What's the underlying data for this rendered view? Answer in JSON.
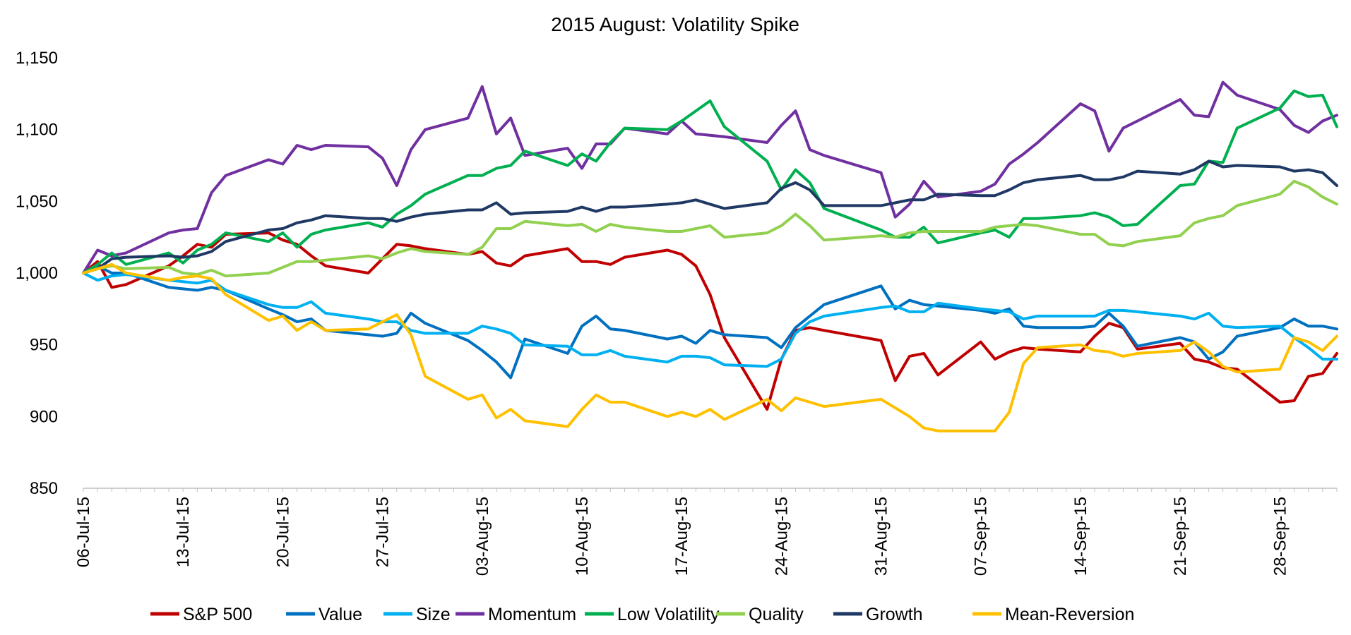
{
  "chart_data": {
    "type": "line",
    "title": "2015 August: Volatility Spike",
    "xlabel": "",
    "ylabel": "",
    "ylim": [
      850,
      1150
    ],
    "yticks": [
      "1,150",
      "1,100",
      "1,050",
      "1,000",
      "950",
      "900",
      "850"
    ],
    "ytick_values": [
      1150,
      1100,
      1050,
      1000,
      950,
      900,
      850
    ],
    "xticks": [
      "06-Jul-15",
      "13-Jul-15",
      "20-Jul-15",
      "27-Jul-15",
      "03-Aug-15",
      "10-Aug-15",
      "17-Aug-15",
      "24-Aug-15",
      "31-Aug-15",
      "07-Sep-15",
      "14-Sep-15",
      "21-Sep-15",
      "28-Sep-15"
    ],
    "xtick_days": [
      0,
      7,
      14,
      21,
      28,
      35,
      42,
      49,
      56,
      63,
      70,
      77,
      84
    ],
    "x_start": "06-Jul-15",
    "x_days": [
      0,
      1,
      2,
      3,
      6,
      7,
      8,
      9,
      10,
      13,
      14,
      15,
      16,
      17,
      20,
      21,
      22,
      23,
      24,
      27,
      28,
      29,
      30,
      31,
      34,
      35,
      36,
      37,
      38,
      41,
      42,
      43,
      44,
      45,
      48,
      49,
      50,
      51,
      52,
      56,
      57,
      58,
      59,
      60,
      63,
      64,
      65,
      66,
      67,
      70,
      71,
      72,
      73,
      74,
      77,
      78,
      79,
      80,
      81,
      84,
      85,
      86,
      87,
      88
    ],
    "grid": false,
    "legend_position": "bottom",
    "series": [
      {
        "name": "S&P 500",
        "color": "#c00000",
        "values": [
          1000,
          1008,
          990,
          992,
          1005,
          1012,
          1020,
          1018,
          1027,
          1028,
          1023,
          1020,
          1012,
          1005,
          1000,
          1010,
          1020,
          1019,
          1017,
          1013,
          1015,
          1007,
          1005,
          1012,
          1017,
          1008,
          1008,
          1006,
          1011,
          1016,
          1013,
          1005,
          985,
          955,
          905,
          940,
          960,
          962,
          960,
          953,
          925,
          942,
          944,
          929,
          952,
          940,
          945,
          948,
          947,
          945,
          956,
          965,
          962,
          947,
          951,
          940,
          938,
          934,
          933,
          910,
          911,
          928,
          930,
          944
        ]
      },
      {
        "name": "Value",
        "color": "#0070c0",
        "values": [
          1000,
          1005,
          1000,
          1000,
          990,
          989,
          988,
          990,
          988,
          975,
          971,
          966,
          968,
          960,
          957,
          956,
          958,
          972,
          965,
          953,
          946,
          938,
          927,
          954,
          944,
          963,
          970,
          961,
          960,
          954,
          956,
          951,
          960,
          957,
          955,
          948,
          962,
          970,
          978,
          991,
          975,
          981,
          978,
          977,
          974,
          972,
          975,
          963,
          962,
          962,
          963,
          972,
          963,
          949,
          955,
          952,
          940,
          945,
          956,
          962,
          968,
          963,
          963,
          961
        ]
      },
      {
        "name": "Size",
        "color": "#00b0f0",
        "values": [
          1000,
          995,
          998,
          999,
          995,
          994,
          993,
          995,
          988,
          978,
          976,
          976,
          980,
          972,
          968,
          966,
          966,
          960,
          958,
          958,
          963,
          961,
          958,
          950,
          949,
          943,
          943,
          946,
          942,
          938,
          942,
          942,
          941,
          936,
          935,
          940,
          958,
          966,
          970,
          976,
          977,
          973,
          973,
          979,
          975,
          974,
          973,
          968,
          970,
          970,
          970,
          974,
          974,
          973,
          970,
          968,
          972,
          963,
          962,
          963,
          955,
          948,
          940,
          940
        ]
      },
      {
        "name": "Momentum",
        "color": "#7030a0",
        "values": [
          1000,
          1016,
          1012,
          1014,
          1028,
          1030,
          1031,
          1056,
          1068,
          1079,
          1076,
          1089,
          1086,
          1089,
          1088,
          1080,
          1061,
          1086,
          1100,
          1108,
          1130,
          1097,
          1108,
          1082,
          1087,
          1073,
          1090,
          1090,
          1101,
          1097,
          1106,
          1097,
          1096,
          1095,
          1091,
          1103,
          1113,
          1086,
          1082,
          1070,
          1039,
          1048,
          1064,
          1053,
          1057,
          1062,
          1076,
          1083,
          1091,
          1118,
          1113,
          1085,
          1101,
          1106,
          1121,
          1110,
          1109,
          1133,
          1124,
          1114,
          1103,
          1098,
          1106,
          1110
        ]
      },
      {
        "name": "Low Volatility",
        "color": "#00b050",
        "values": [
          1000,
          1006,
          1014,
          1006,
          1014,
          1007,
          1016,
          1020,
          1028,
          1022,
          1028,
          1018,
          1027,
          1030,
          1035,
          1032,
          1041,
          1047,
          1055,
          1068,
          1068,
          1073,
          1075,
          1085,
          1075,
          1083,
          1078,
          1091,
          1101,
          1100,
          1106,
          1113,
          1120,
          1102,
          1078,
          1058,
          1072,
          1063,
          1045,
          1030,
          1025,
          1025,
          1032,
          1021,
          1028,
          1030,
          1025,
          1038,
          1038,
          1040,
          1042,
          1039,
          1033,
          1034,
          1061,
          1062,
          1078,
          1077,
          1101,
          1115,
          1127,
          1123,
          1124,
          1102
        ]
      },
      {
        "name": "Quality",
        "color": "#92d050",
        "values": [
          1000,
          1003,
          1005,
          1003,
          1004,
          1000,
          999,
          1002,
          998,
          1000,
          1004,
          1008,
          1008,
          1009,
          1012,
          1010,
          1014,
          1017,
          1015,
          1013,
          1018,
          1031,
          1031,
          1036,
          1033,
          1034,
          1029,
          1034,
          1032,
          1029,
          1029,
          1031,
          1033,
          1025,
          1028,
          1033,
          1041,
          1033,
          1023,
          1026,
          1025,
          1028,
          1029,
          1029,
          1029,
          1032,
          1033,
          1034,
          1033,
          1027,
          1027,
          1020,
          1019,
          1022,
          1026,
          1035,
          1038,
          1040,
          1047,
          1055,
          1064,
          1060,
          1053,
          1048
        ]
      },
      {
        "name": "Growth",
        "color": "#1f3864",
        "values": [
          1000,
          1003,
          1010,
          1011,
          1012,
          1011,
          1012,
          1015,
          1022,
          1030,
          1031,
          1035,
          1037,
          1040,
          1038,
          1038,
          1036,
          1039,
          1041,
          1044,
          1044,
          1049,
          1041,
          1042,
          1043,
          1046,
          1043,
          1046,
          1046,
          1048,
          1049,
          1051,
          1048,
          1045,
          1049,
          1059,
          1063,
          1058,
          1047,
          1047,
          1049,
          1051,
          1051,
          1055,
          1054,
          1054,
          1058,
          1063,
          1065,
          1068,
          1065,
          1065,
          1067,
          1071,
          1069,
          1072,
          1078,
          1074,
          1075,
          1074,
          1071,
          1072,
          1070,
          1061
        ]
      },
      {
        "name": "Mean-Reversion",
        "color": "#ffc000",
        "values": [
          1000,
          1003,
          1006,
          1000,
          995,
          997,
          998,
          996,
          985,
          967,
          970,
          960,
          966,
          960,
          961,
          966,
          971,
          957,
          928,
          912,
          915,
          899,
          905,
          897,
          893,
          905,
          915,
          910,
          910,
          900,
          903,
          900,
          905,
          898,
          912,
          904,
          913,
          910,
          907,
          912,
          906,
          900,
          892,
          890,
          890,
          890,
          903,
          937,
          948,
          950,
          946,
          945,
          942,
          944,
          946,
          952,
          945,
          935,
          931,
          933,
          955,
          952,
          946,
          956
        ]
      }
    ]
  }
}
